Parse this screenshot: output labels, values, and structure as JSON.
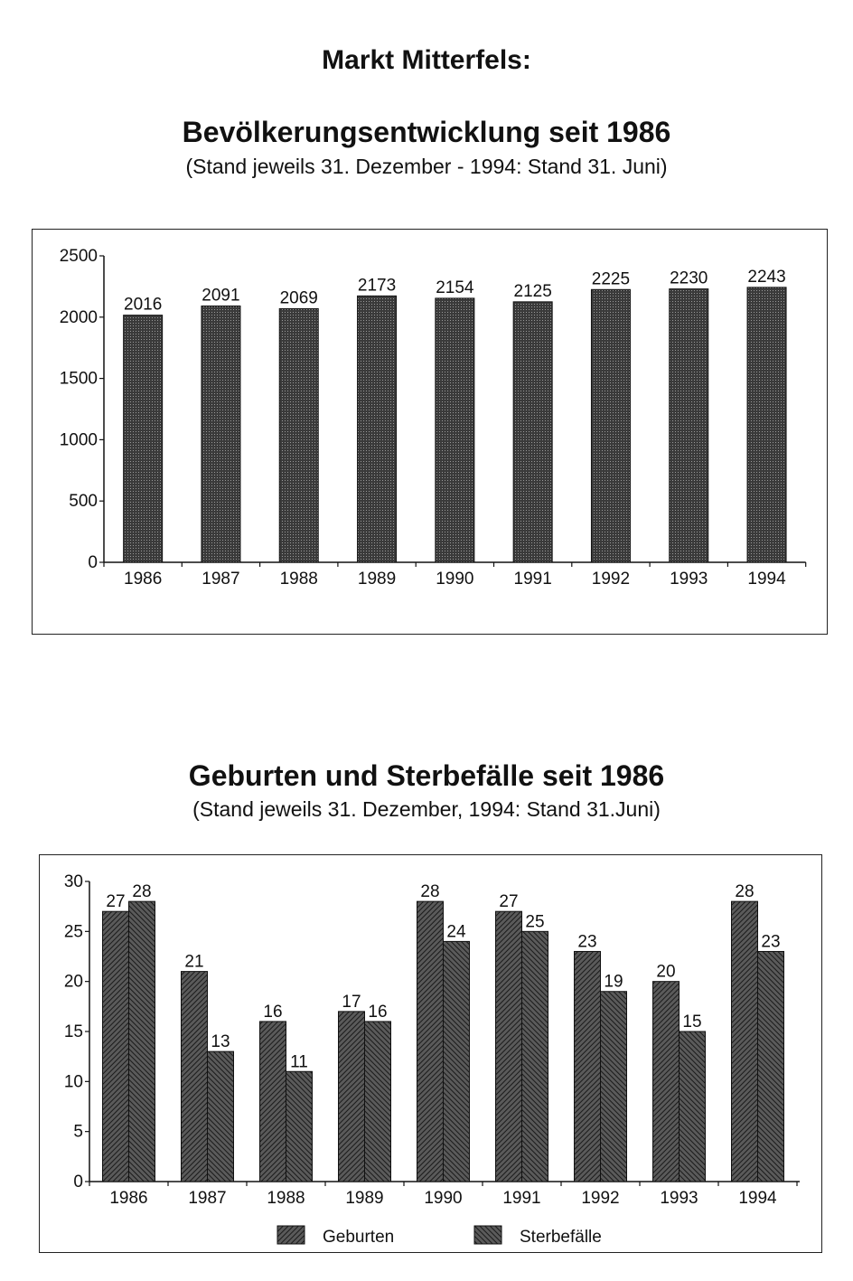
{
  "page_title": "Markt Mitterfels:",
  "chart_data": [
    {
      "type": "bar",
      "title": "Bevölkerungsentwicklung seit 1986",
      "subtitle": "(Stand jeweils 31. Dezember - 1994: Stand 31. Juni)",
      "categories": [
        "1986",
        "1987",
        "1988",
        "1989",
        "1990",
        "1991",
        "1992",
        "1993",
        "1994"
      ],
      "values": [
        2016,
        2091,
        2069,
        2173,
        2154,
        2125,
        2225,
        2230,
        2243
      ],
      "ylim": [
        0,
        2500
      ],
      "yticks": [
        0,
        500,
        1000,
        1500,
        2000,
        2500
      ],
      "grid": false,
      "legend": false,
      "data_labels": true
    },
    {
      "type": "bar",
      "title": "Geburten und Sterbefälle seit 1986",
      "subtitle": "(Stand jeweils 31. Dezember, 1994: Stand 31.Juni)",
      "categories": [
        "1986",
        "1987",
        "1988",
        "1989",
        "1990",
        "1991",
        "1992",
        "1993",
        "1994"
      ],
      "series": [
        {
          "name": "Geburten",
          "values": [
            27,
            21,
            16,
            17,
            28,
            27,
            23,
            20,
            28
          ]
        },
        {
          "name": "Sterbefälle",
          "values": [
            28,
            13,
            11,
            16,
            24,
            25,
            19,
            15,
            23
          ]
        }
      ],
      "ylim": [
        0,
        30
      ],
      "yticks": [
        0,
        5,
        10,
        15,
        20,
        25,
        30
      ],
      "grid": false,
      "legend": "bottom",
      "data_labels": true
    }
  ]
}
